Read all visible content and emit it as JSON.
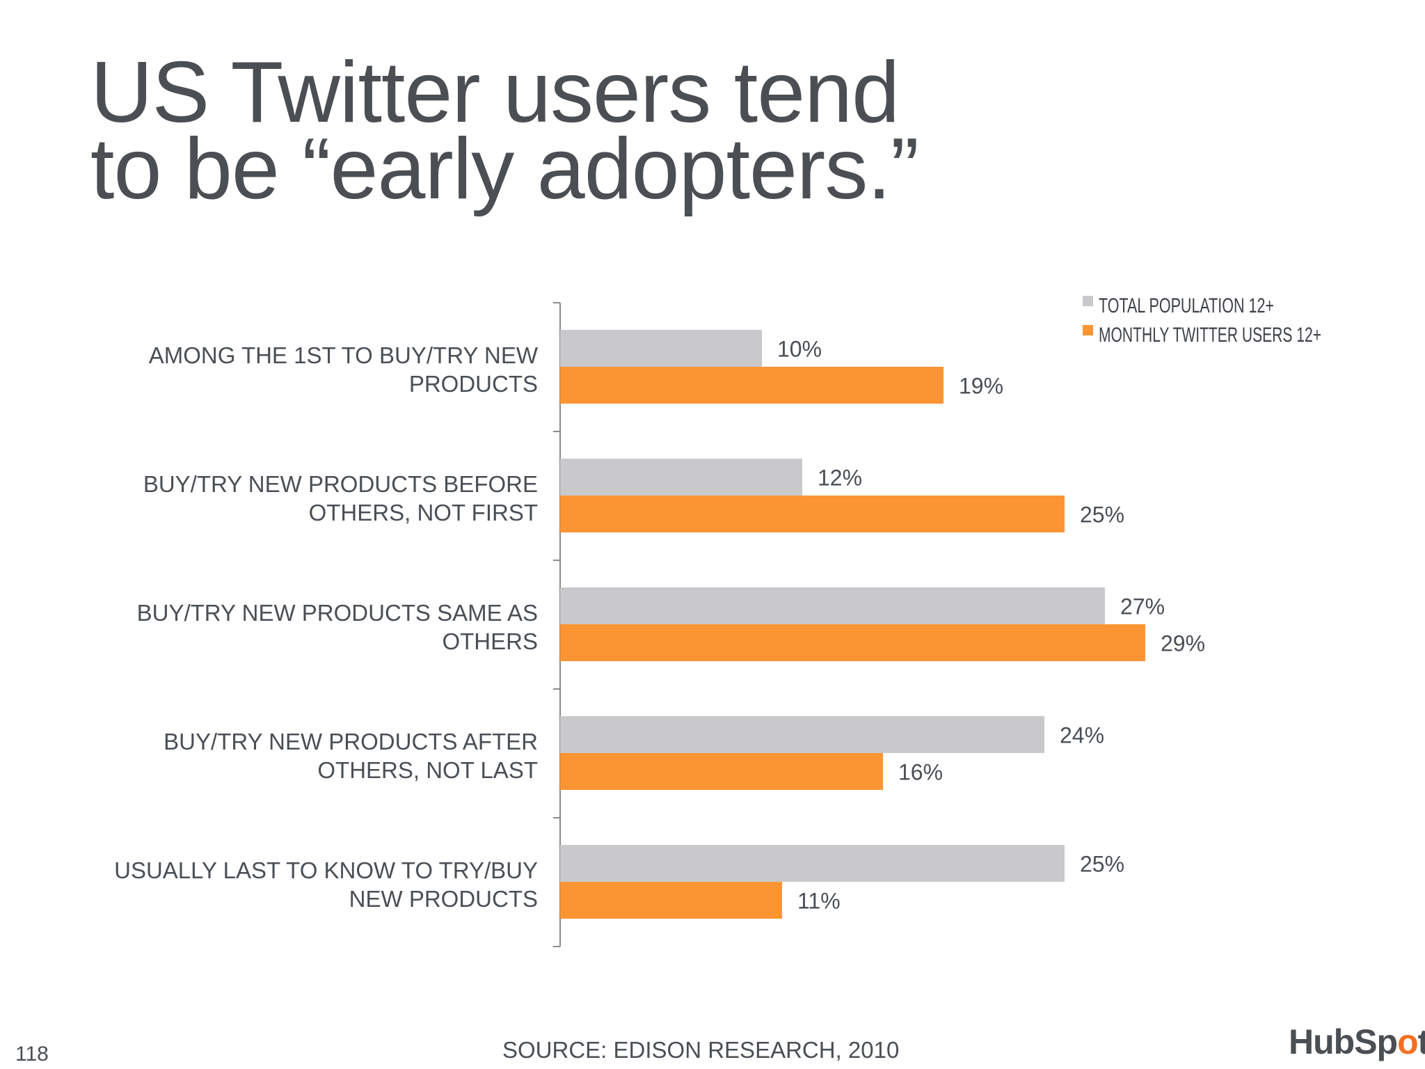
{
  "slide": {
    "title_lines": [
      "US Twitter users tend",
      "to be “early adopters.”"
    ],
    "page_number": "118",
    "source": "SOURCE: EDISON RESEARCH,  2010",
    "logo_text": "HubSpot"
  },
  "colors": {
    "total_population": "#c9c9cc",
    "twitter_users": "#fb9534",
    "axis": "#8a8a8a",
    "text": "#4a4f55"
  },
  "chart_data": {
    "type": "bar",
    "orientation": "horizontal",
    "title": "",
    "xlabel": "",
    "ylabel": "",
    "xlim": [
      0,
      29
    ],
    "grid": false,
    "legend_position": "top-right",
    "value_suffix": "%",
    "categories": [
      [
        "AMONG THE 1ST TO BUY/TRY NEW",
        "PRODUCTS"
      ],
      [
        "BUY/TRY NEW PRODUCTS BEFORE",
        "OTHERS, NOT FIRST"
      ],
      [
        "BUY/TRY NEW PRODUCTS SAME AS",
        "OTHERS"
      ],
      [
        "BUY/TRY NEW PRODUCTS AFTER",
        "OTHERS, NOT LAST"
      ],
      [
        "USUALLY LAST TO KNOW TO TRY/BUY",
        "NEW PRODUCTS"
      ]
    ],
    "series": [
      {
        "name": "TOTAL POPULATION 12+",
        "color": "#c9c9cc",
        "values": [
          10,
          12,
          27,
          24,
          25
        ]
      },
      {
        "name": "MONTHLY TWITTER USERS 12+",
        "color": "#fb9534",
        "values": [
          19,
          25,
          29,
          16,
          11
        ]
      }
    ]
  }
}
